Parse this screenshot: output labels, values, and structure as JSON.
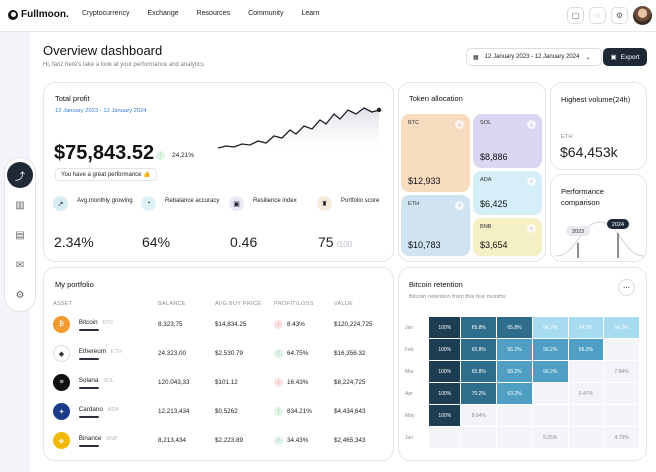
{
  "brand": "Fullmoon.",
  "nav": [
    "Cryptocurrency",
    "Exchange",
    "Resources",
    "Community",
    "Learn"
  ],
  "page": {
    "title": "Overview dashboard",
    "subtitle": "Hi, fariz here's take a look at your performance and analytics",
    "date_range": "12 January 2023 - 12 January 2024",
    "export_label": "Export"
  },
  "total_profit": {
    "title": "Total profit",
    "date": "12 January 2023 - 12 January 2024",
    "value": "$75,843.52",
    "change": "24.21%",
    "note": "You have a great performance"
  },
  "metrics": [
    {
      "label": "Avg.monthly growing",
      "value": "2.34%",
      "color": "#d8ecf3"
    },
    {
      "label": "Rebalance accuracy",
      "value": "64%",
      "color": "#dff1f6"
    },
    {
      "label": "Resilience index",
      "value": "0.46",
      "color": "#ece6f8"
    },
    {
      "label": "Portfolio score",
      "value": "75",
      "suffix": "/100",
      "color": "#f7ecdc"
    }
  ],
  "token_allocation": {
    "title": "Token allocation",
    "tokens": [
      {
        "symbol": "BTC",
        "value": "$12,933",
        "color": "#f8dcc0"
      },
      {
        "symbol": "SOL",
        "value": "$8,886",
        "color": "#ddd6f3"
      },
      {
        "symbol": "ADA",
        "value": "$6,425",
        "color": "#d5eef7"
      },
      {
        "symbol": "ETH",
        "value": "$10,783",
        "color": "#cfe3f1"
      },
      {
        "symbol": "BNB",
        "value": "$3,654",
        "color": "#f5efc6"
      }
    ]
  },
  "highest_volume": {
    "title": "Highest volume(24h)",
    "coin": "ETH",
    "value": "$64,453k"
  },
  "performance": {
    "title": "Performance comparison",
    "labels": [
      "2023",
      "2024"
    ],
    "levels": [
      0.38,
      0.62
    ]
  },
  "portfolio": {
    "title": "My portfolio",
    "headers": [
      "ASSET",
      "BALANCE",
      "AVG.BUY PRICE",
      "PROFIT/LOSS",
      "VALUE"
    ],
    "rows": [
      {
        "name": "Bitcoin",
        "ticker": "BTC",
        "balance": "8.323,75",
        "avg": "$14,834.25",
        "pl": "8.43%",
        "dir": "down",
        "value": "$120,224,725",
        "color": "#f29a2e",
        "glyph": "₿"
      },
      {
        "name": "Ethereum",
        "ticker": "ETH",
        "balance": "24.323,00",
        "avg": "$2,530.79",
        "pl": "64.75%",
        "dir": "up",
        "value": "$16,356.32",
        "color": "#ffffff",
        "glyph": "◆"
      },
      {
        "name": "Solana",
        "ticker": "SOL",
        "balance": "120.043,33",
        "avg": "$101.12",
        "pl": "16.43%",
        "dir": "down",
        "value": "$8,224,725",
        "color": "#111111",
        "glyph": "≡"
      },
      {
        "name": "Cardano",
        "ticker": "ADA",
        "balance": "12,213,434",
        "avg": "$0.5262",
        "pl": "834.21%",
        "dir": "up",
        "value": "$4,434,643",
        "color": "#1b3a8a",
        "glyph": "✦"
      },
      {
        "name": "Binance",
        "ticker": "BNB",
        "balance": "8,213,434",
        "avg": "$2.223.89",
        "pl": "34.43%",
        "dir": "up",
        "value": "$2,465,343",
        "color": "#f0b90b",
        "glyph": "◈"
      }
    ]
  },
  "retention": {
    "title": "Bitcoin retention",
    "subtitle": "Bitcoin retention from this few months",
    "months": [
      "Jan",
      "Feb",
      "Mar",
      "Apr",
      "May",
      "Jun"
    ],
    "rows": [
      [
        "100%",
        "65.8%",
        "65.8%",
        "54.2%",
        "54.2%",
        "54.2%"
      ],
      [
        "100%",
        "65.8%",
        "56.2%",
        "56.2%",
        "56.2%",
        ""
      ],
      [
        "100%",
        "65.8%",
        "58.2%",
        "56.2%",
        "",
        "7.84%"
      ],
      [
        "100%",
        "70.2%",
        "63.2%",
        "",
        "6.47%",
        ""
      ],
      [
        "100%",
        "8.64%",
        "",
        "",
        "",
        ""
      ],
      [
        "",
        "",
        "",
        "9.25%",
        "",
        "4.76%"
      ]
    ]
  }
}
